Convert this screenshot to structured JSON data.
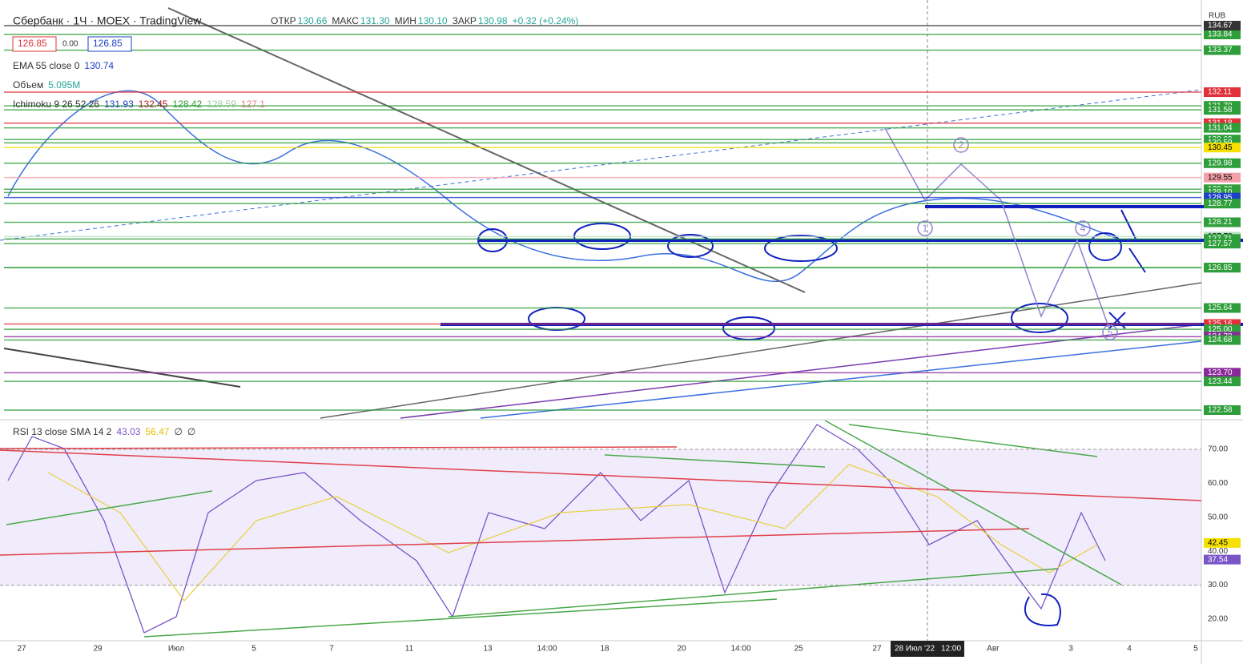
{
  "header": {
    "symbol": "Сбербанк · 1Ч · MOEX · TradingView",
    "ohlc": [
      {
        "label": "ОТКР",
        "value": "130.66"
      },
      {
        "label": "МАКС",
        "value": "131.30"
      },
      {
        "label": "МИН",
        "value": "130.10"
      },
      {
        "label": "ЗАКР",
        "value": "130.98"
      }
    ],
    "change": "+0.32 (+0.24%)",
    "sell": "126.85",
    "spread": "0.00",
    "buy": "126.85"
  },
  "indicators": [
    {
      "name": "EMA 55 close 0",
      "values": [
        "130.74"
      ]
    },
    {
      "name": "Объем",
      "values": [
        "5.095M"
      ]
    },
    {
      "name": "Ichimoku 9 26 52 26",
      "values": [
        "131.93",
        "132.45",
        "128.42",
        "128.59",
        "127.1"
      ]
    }
  ],
  "price_axis": {
    "currency": "RUB",
    "labels": [
      {
        "text": "133.84",
        "color": "#2e9e3a"
      },
      {
        "text": "133.37",
        "color": "#2e9e3a"
      },
      {
        "text": "132.11",
        "color": "#e0303a"
      },
      {
        "text": "131.70",
        "color": "#2e9e3a"
      },
      {
        "text": "131.58",
        "color": "#2e9e3a"
      },
      {
        "text": "131.18",
        "color": "#e0303a"
      },
      {
        "text": "131.04",
        "color": "#2e9e3a"
      },
      {
        "text": "134.67",
        "color": "#333333"
      },
      {
        "text": "130.69",
        "color": "#2e9e3a"
      },
      {
        "text": "130.59",
        "color": "#2e9e3a"
      },
      {
        "text": "130.45",
        "color": "#f5e000"
      },
      {
        "text": "129.98",
        "color": "#2e9e3a"
      },
      {
        "text": "129.55",
        "color": "#f4a0a8"
      },
      {
        "text": "129.20",
        "color": "#2e9e3a"
      },
      {
        "text": "129.10",
        "color": "#2e9e3a"
      },
      {
        "text": "128.95",
        "color": "#1e40c8"
      },
      {
        "text": "128.77",
        "color": "#2e9e3a"
      },
      {
        "text": "128.21",
        "color": "#2e9e3a"
      },
      {
        "text": "127.78",
        "color": "#b8e0c0"
      },
      {
        "text": "127.71",
        "color": "#2e9e3a"
      },
      {
        "text": "127.57",
        "color": "#2e9e3a"
      },
      {
        "text": "126.85",
        "color": "#2e9e3a"
      },
      {
        "text": "126.85",
        "color": "#2e9e3a"
      },
      {
        "text": "125.64",
        "color": "#2e9e3a"
      },
      {
        "text": "125.16",
        "color": "#e0303a"
      },
      {
        "text": "125.00",
        "color": "#2e9e3a"
      },
      {
        "text": "124.78",
        "color": "#8a2a9a"
      },
      {
        "text": "124.68",
        "color": "#2e9e3a"
      },
      {
        "text": "123.70",
        "color": "#8a2a9a"
      },
      {
        "text": "123.44",
        "color": "#2e9e3a"
      },
      {
        "text": "122.58",
        "color": "#2e9e3a"
      }
    ]
  },
  "rsi": {
    "title": "RSI 13 close SMA 14 2",
    "values": [
      "43.03",
      "56.47",
      "∅",
      "∅"
    ],
    "axis": [
      "70.00",
      "60.00",
      "50.00",
      "40.00",
      "30.00",
      "20.00"
    ],
    "labels": [
      {
        "text": "42.45",
        "color": "#f5e000"
      },
      {
        "text": "37.54",
        "color": "#7a55c8"
      }
    ]
  },
  "time_axis": [
    "27",
    "29",
    "Июл",
    "5",
    "7",
    "11",
    "13",
    "14:00",
    "18",
    "20",
    "14:00",
    "25",
    "27",
    "Авг",
    "3",
    "4",
    "5"
  ],
  "cursor": {
    "date": "28 Июл '22",
    "time": "12:00"
  },
  "wave_labels": [
    "1",
    "2",
    "4",
    "5"
  ]
}
